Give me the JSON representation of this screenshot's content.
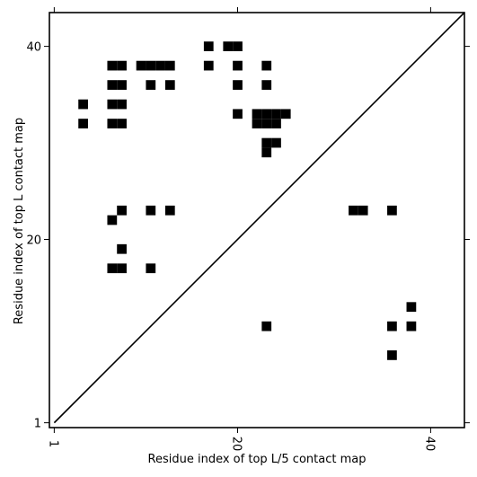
{
  "chart_data": {
    "type": "heatmap",
    "title": "",
    "xlabel": "Residue index of top L/5 contact map",
    "ylabel": "Residue index of top L contact map",
    "x_ticks": [
      1,
      20,
      40
    ],
    "y_ticks": [
      1,
      20,
      40
    ],
    "xlim": [
      0.5,
      43.5
    ],
    "ylim": [
      0.5,
      43.5
    ],
    "grid": false,
    "diagonal_line": true,
    "colors": {
      "cell": "#000000",
      "background": "#ffffff",
      "line": "#000000"
    },
    "contacts": [
      [
        17,
        40
      ],
      [
        19,
        40
      ],
      [
        20,
        40
      ],
      [
        7,
        38
      ],
      [
        8,
        38
      ],
      [
        10,
        38
      ],
      [
        11,
        38
      ],
      [
        12,
        38
      ],
      [
        13,
        38
      ],
      [
        17,
        38
      ],
      [
        20,
        38
      ],
      [
        23,
        38
      ],
      [
        7,
        36
      ],
      [
        8,
        36
      ],
      [
        11,
        36
      ],
      [
        13,
        36
      ],
      [
        20,
        36
      ],
      [
        23,
        36
      ],
      [
        4,
        34
      ],
      [
        7,
        34
      ],
      [
        8,
        34
      ],
      [
        20,
        33
      ],
      [
        22,
        33
      ],
      [
        23,
        33
      ],
      [
        24,
        33
      ],
      [
        25,
        33
      ],
      [
        4,
        32
      ],
      [
        7,
        32
      ],
      [
        8,
        32
      ],
      [
        22,
        32
      ],
      [
        23,
        32
      ],
      [
        24,
        32
      ],
      [
        23,
        30
      ],
      [
        24,
        30
      ],
      [
        23,
        29
      ],
      [
        8,
        23
      ],
      [
        11,
        23
      ],
      [
        13,
        23
      ],
      [
        32,
        23
      ],
      [
        33,
        23
      ],
      [
        36,
        23
      ],
      [
        7,
        22
      ],
      [
        8,
        19
      ],
      [
        7,
        17
      ],
      [
        8,
        17
      ],
      [
        11,
        17
      ],
      [
        38,
        13
      ],
      [
        23,
        11
      ],
      [
        36,
        11
      ],
      [
        38,
        11
      ],
      [
        36,
        8
      ]
    ]
  }
}
